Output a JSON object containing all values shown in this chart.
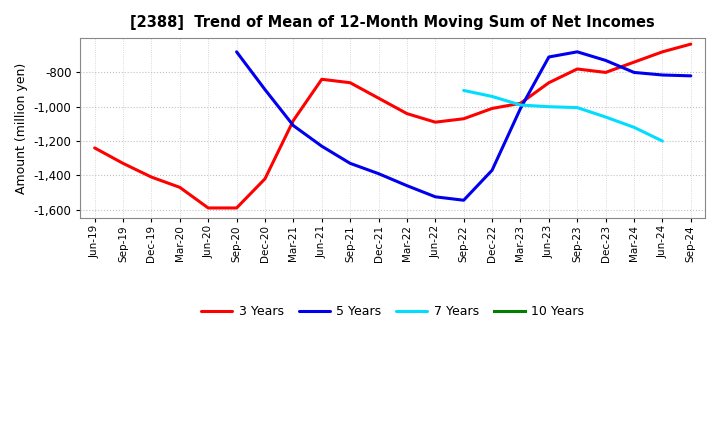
{
  "title": "[2388]  Trend of Mean of 12-Month Moving Sum of Net Incomes",
  "ylabel": "Amount (million yen)",
  "ylim": [
    -1650,
    -600
  ],
  "yticks": [
    -1600,
    -1400,
    -1200,
    -1000,
    -800
  ],
  "background_color": "#ffffff",
  "grid_color": "#999999",
  "x_labels": [
    "Jun-19",
    "Sep-19",
    "Dec-19",
    "Mar-20",
    "Jun-20",
    "Sep-20",
    "Dec-20",
    "Mar-21",
    "Jun-21",
    "Sep-21",
    "Dec-21",
    "Mar-22",
    "Jun-22",
    "Sep-22",
    "Dec-22",
    "Mar-23",
    "Jun-23",
    "Sep-23",
    "Dec-23",
    "Mar-24",
    "Jun-24",
    "Sep-24"
  ],
  "series": {
    "3 Years": {
      "color": "#ff0000",
      "linewidth": 2.2,
      "values": [
        [
          "Jun-19",
          -1240
        ],
        [
          "Sep-19",
          -1330
        ],
        [
          "Dec-19",
          -1410
        ],
        [
          "Mar-20",
          -1470
        ],
        [
          "Jun-20",
          -1590
        ],
        [
          "Sep-20",
          -1590
        ],
        [
          "Dec-20",
          -1420
        ],
        [
          "Mar-21",
          -1080
        ],
        [
          "Jun-21",
          -840
        ],
        [
          "Sep-21",
          -860
        ],
        [
          "Dec-21",
          -950
        ],
        [
          "Mar-22",
          -1040
        ],
        [
          "Jun-22",
          -1090
        ],
        [
          "Sep-22",
          -1070
        ],
        [
          "Dec-22",
          -1010
        ],
        [
          "Mar-23",
          -980
        ],
        [
          "Jun-23",
          -860
        ],
        [
          "Sep-23",
          -780
        ],
        [
          "Dec-23",
          -800
        ],
        [
          "Mar-24",
          -740
        ],
        [
          "Jun-24",
          -680
        ],
        [
          "Sep-24",
          -635
        ]
      ]
    },
    "5 Years": {
      "color": "#0000ee",
      "linewidth": 2.2,
      "values": [
        [
          "Sep-20",
          -680
        ],
        [
          "Dec-20",
          -900
        ],
        [
          "Mar-21",
          -1110
        ],
        [
          "Jun-21",
          -1230
        ],
        [
          "Sep-21",
          -1330
        ],
        [
          "Dec-21",
          -1390
        ],
        [
          "Mar-22",
          -1460
        ],
        [
          "Jun-22",
          -1525
        ],
        [
          "Sep-22",
          -1545
        ],
        [
          "Dec-22",
          -1370
        ],
        [
          "Mar-23",
          -1010
        ],
        [
          "Jun-23",
          -710
        ],
        [
          "Sep-23",
          -680
        ],
        [
          "Dec-23",
          -730
        ],
        [
          "Mar-24",
          -800
        ],
        [
          "Jun-24",
          -815
        ],
        [
          "Sep-24",
          -820
        ]
      ]
    },
    "7 Years": {
      "color": "#00ddff",
      "linewidth": 2.2,
      "values": [
        [
          "Sep-22",
          -905
        ],
        [
          "Dec-22",
          -940
        ],
        [
          "Mar-23",
          -990
        ],
        [
          "Jun-23",
          -1000
        ],
        [
          "Sep-23",
          -1005
        ],
        [
          "Dec-23",
          -1060
        ],
        [
          "Mar-24",
          -1120
        ],
        [
          "Jun-24",
          -1200
        ]
      ]
    },
    "10 Years": {
      "color": "#008000",
      "linewidth": 2.2,
      "values": []
    }
  },
  "legend_labels": [
    "3 Years",
    "5 Years",
    "7 Years",
    "10 Years"
  ],
  "legend_colors": [
    "#ff0000",
    "#0000ee",
    "#00ddff",
    "#008000"
  ]
}
